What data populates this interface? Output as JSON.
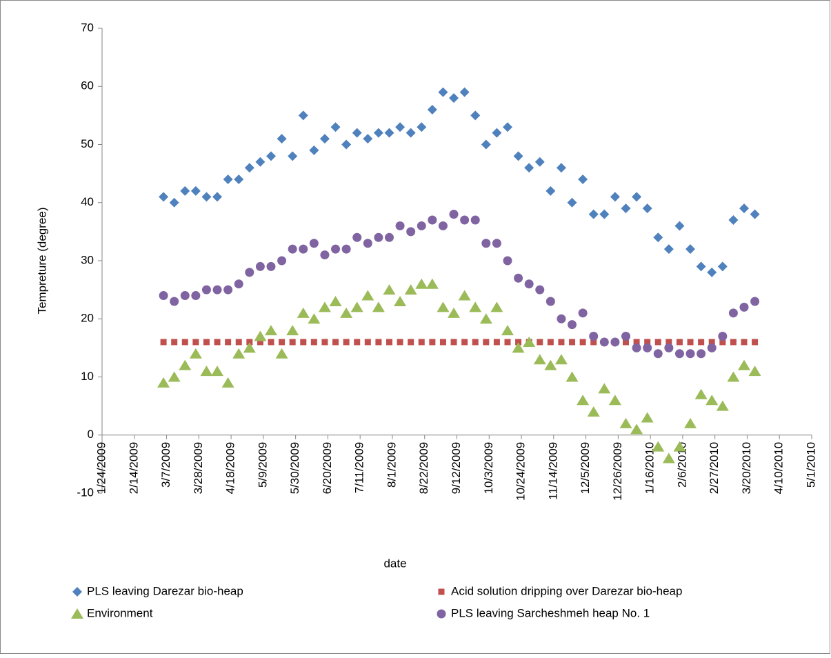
{
  "chart_data": {
    "type": "scatter",
    "x_label": "date",
    "y_label": "Tempreture (degree)",
    "x": [
      "2009-03-05",
      "2009-03-12",
      "2009-03-19",
      "2009-03-26",
      "2009-04-02",
      "2009-04-09",
      "2009-04-16",
      "2009-04-23",
      "2009-04-30",
      "2009-05-07",
      "2009-05-14",
      "2009-05-21",
      "2009-05-28",
      "2009-06-04",
      "2009-06-11",
      "2009-06-18",
      "2009-06-25",
      "2009-07-02",
      "2009-07-09",
      "2009-07-16",
      "2009-07-23",
      "2009-07-30",
      "2009-08-06",
      "2009-08-13",
      "2009-08-20",
      "2009-08-27",
      "2009-09-03",
      "2009-09-10",
      "2009-09-17",
      "2009-09-24",
      "2009-10-01",
      "2009-10-08",
      "2009-10-15",
      "2009-10-22",
      "2009-10-29",
      "2009-11-05",
      "2009-11-12",
      "2009-11-19",
      "2009-11-26",
      "2009-12-03",
      "2009-12-10",
      "2009-12-17",
      "2009-12-24",
      "2009-12-31",
      "2010-01-07",
      "2010-01-14",
      "2010-01-21",
      "2010-01-28",
      "2010-02-04",
      "2010-02-11",
      "2010-02-18",
      "2010-02-25",
      "2010-03-04",
      "2010-03-11",
      "2010-03-18",
      "2010-03-25"
    ],
    "series": [
      {
        "name": "PLS leaving Darezar bio-heap",
        "color": "#4f81bd",
        "marker": "diamond",
        "values": [
          41,
          40,
          42,
          42,
          41,
          41,
          44,
          44,
          46,
          47,
          48,
          51,
          48,
          55,
          49,
          51,
          53,
          50,
          52,
          51,
          52,
          52,
          53,
          52,
          53,
          56,
          59,
          58,
          59,
          55,
          50,
          52,
          53,
          48,
          46,
          47,
          42,
          46,
          40,
          44,
          38,
          38,
          41,
          39,
          41,
          39,
          34,
          32,
          36,
          32,
          29,
          28,
          29,
          37,
          39,
          38
        ]
      },
      {
        "name": "Acid solution dripping over Darezar bio-heap",
        "color": "#c0504d",
        "marker": "square",
        "values": [
          16,
          16,
          16,
          16,
          16,
          16,
          16,
          16,
          16,
          16,
          16,
          16,
          16,
          16,
          16,
          16,
          16,
          16,
          16,
          16,
          16,
          16,
          16,
          16,
          16,
          16,
          16,
          16,
          16,
          16,
          16,
          16,
          16,
          16,
          16,
          16,
          16,
          16,
          16,
          16,
          16,
          16,
          16,
          16,
          16,
          16,
          16,
          16,
          16,
          16,
          16,
          16,
          16,
          16,
          16,
          16
        ]
      },
      {
        "name": "Environment",
        "color": "#9bbb59",
        "marker": "triangle",
        "values": [
          9,
          10,
          12,
          14,
          11,
          11,
          9,
          14,
          15,
          17,
          18,
          14,
          18,
          21,
          20,
          22,
          23,
          21,
          22,
          24,
          22,
          25,
          23,
          25,
          26,
          26,
          22,
          21,
          24,
          22,
          20,
          22,
          18,
          15,
          16,
          13,
          12,
          13,
          10,
          6,
          4,
          8,
          6,
          2,
          1,
          3,
          -2,
          -4,
          -2,
          2,
          7,
          6,
          5,
          10,
          12,
          11
        ]
      },
      {
        "name": "PLS leaving Sarcheshmeh heap No. 1",
        "color": "#8064a2",
        "marker": "circle",
        "values": [
          24,
          23,
          24,
          24,
          25,
          25,
          25,
          26,
          28,
          29,
          29,
          30,
          32,
          32,
          33,
          31,
          32,
          32,
          34,
          33,
          34,
          34,
          36,
          35,
          36,
          37,
          36,
          38,
          37,
          37,
          33,
          33,
          30,
          27,
          26,
          25,
          23,
          20,
          19,
          21,
          17,
          16,
          16,
          17,
          15,
          15,
          14,
          15,
          14,
          14,
          14,
          15,
          17,
          21,
          22,
          23
        ]
      }
    ],
    "xlim": [
      "2009-01-24",
      "2010-05-01"
    ],
    "xticks": [
      {
        "value": "2009-01-24",
        "label": "1/24/2009"
      },
      {
        "value": "2009-02-14",
        "label": "2/14/2009"
      },
      {
        "value": "2009-03-07",
        "label": "3/7/2009"
      },
      {
        "value": "2009-03-28",
        "label": "3/28/2009"
      },
      {
        "value": "2009-04-18",
        "label": "4/18/2009"
      },
      {
        "value": "2009-05-09",
        "label": "5/9/2009"
      },
      {
        "value": "2009-05-30",
        "label": "5/30/2009"
      },
      {
        "value": "2009-06-20",
        "label": "6/20/2009"
      },
      {
        "value": "2009-07-11",
        "label": "7/11/2009"
      },
      {
        "value": "2009-08-01",
        "label": "8/1/2009"
      },
      {
        "value": "2009-08-22",
        "label": "8/22/2009"
      },
      {
        "value": "2009-09-12",
        "label": "9/12/2009"
      },
      {
        "value": "2009-10-03",
        "label": "10/3/2009"
      },
      {
        "value": "2009-10-24",
        "label": "10/24/2009"
      },
      {
        "value": "2009-11-14",
        "label": "11/14/2009"
      },
      {
        "value": "2009-12-05",
        "label": "12/5/2009"
      },
      {
        "value": "2009-12-26",
        "label": "12/26/2009"
      },
      {
        "value": "2010-01-16",
        "label": "1/16/2010"
      },
      {
        "value": "2010-02-06",
        "label": "2/6/2010"
      },
      {
        "value": "2010-02-27",
        "label": "2/27/2010"
      },
      {
        "value": "2010-03-20",
        "label": "3/20/2010"
      },
      {
        "value": "2010-04-10",
        "label": "4/10/2010"
      },
      {
        "value": "2010-05-01",
        "label": "5/1/2010"
      }
    ],
    "ylim": [
      -10,
      70
    ],
    "yticks": [
      -10,
      0,
      10,
      20,
      30,
      40,
      50,
      60,
      70
    ],
    "grid": false,
    "legend": "bottom"
  }
}
